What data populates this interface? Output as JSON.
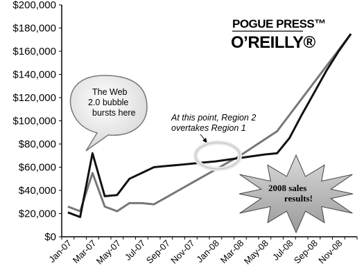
{
  "chart_data": {
    "type": "line",
    "title": "",
    "xlabel": "",
    "ylabel": "",
    "ylim": [
      0,
      200000
    ],
    "yticks": [
      "$0",
      "$20,000",
      "$40,000",
      "$60,000",
      "$80,000",
      "$100,000",
      "$120,000",
      "$140,000",
      "$160,000",
      "$180,000",
      "$200,000"
    ],
    "x_tick_labels": [
      "Jan-07",
      "Mar-07",
      "May-07",
      "Jul-07",
      "Sep-07",
      "Nov-07",
      "Jan-08",
      "Mar-08",
      "May-08",
      "Jul-08",
      "Sep-08",
      "Nov-08"
    ],
    "categories": [
      "Jan-07",
      "Feb-07",
      "Mar-07",
      "Apr-07",
      "May-07",
      "Jun-07",
      "Jul-07",
      "Aug-07",
      "Sep-07",
      "Oct-07",
      "Nov-07",
      "Dec-07",
      "Jan-08",
      "Feb-08",
      "Mar-08",
      "Apr-08",
      "May-08",
      "Jun-08",
      "Jul-08",
      "Aug-08",
      "Sep-08",
      "Oct-08",
      "Nov-08",
      "Dec-08"
    ],
    "series": [
      {
        "values": [
          21000,
          17000,
          72000,
          35000,
          36000,
          50000,
          55000,
          60000,
          61000,
          62000,
          63000,
          64000,
          65000,
          66500,
          68000,
          69500,
          71000,
          72000,
          85000,
          105000,
          124000,
          143000,
          160000,
          175000
        ],
        "color": "#111111"
      },
      {
        "values": [
          26000,
          22000,
          55000,
          26000,
          22000,
          29000,
          29000,
          28000,
          34000,
          40000,
          46000,
          52000,
          58000,
          64000,
          70000,
          77000,
          84000,
          91000,
          105000,
          119000,
          133000,
          147000,
          161000,
          175000
        ],
        "color": "#777777"
      }
    ],
    "grid": false,
    "legend": "none"
  },
  "logo": {
    "line1": "POGUE PRESS™",
    "line2": "O’REILLY®"
  },
  "annotations": {
    "bubble_lines": [
      "The Web",
      "2.0 bubble",
      "bursts here"
    ],
    "note_lines": [
      "At this point, Region 2",
      "overtakes Region 1"
    ],
    "burst_lines": [
      "2008 sales",
      "results!"
    ]
  },
  "colors": {
    "series1": "#111111",
    "series2": "#777777",
    "axis": "#000000"
  }
}
